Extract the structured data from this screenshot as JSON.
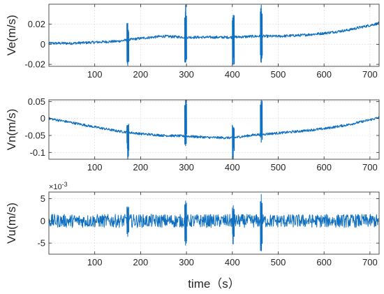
{
  "chart_data": [
    {
      "type": "line",
      "ylabel": "Ve(m/s)",
      "xlim": [
        0,
        720
      ],
      "ylim": [
        -0.022,
        0.04
      ],
      "xticks": [
        100,
        200,
        300,
        400,
        500,
        600,
        700
      ],
      "xtick_labels": [
        "100",
        "200",
        "300",
        "400",
        "500",
        "600",
        "700"
      ],
      "yticks": [
        0.02,
        0,
        -0.02
      ],
      "ytick_labels": [
        "0.02",
        "0",
        "-0.02"
      ],
      "grid": true,
      "series": [
        {
          "x": [
            0,
            50,
            100,
            150,
            200,
            250,
            300,
            350,
            400,
            450,
            500,
            550,
            600,
            650,
            700,
            720
          ],
          "values": [
            0.001,
            0.001,
            0.002,
            0.003,
            0.006,
            0.008,
            0.007,
            0.007,
            0.007,
            0.008,
            0.008,
            0.009,
            0.011,
            0.014,
            0.019,
            0.021
          ],
          "noise": 0.0013,
          "spikes": [
            {
              "x": 172,
              "hi": 0.021,
              "lo": -0.021
            },
            {
              "x": 298,
              "hi": 0.039,
              "lo": -0.018
            },
            {
              "x": 402,
              "hi": 0.029,
              "lo": -0.02
            },
            {
              "x": 463,
              "hi": 0.039,
              "lo": -0.018
            }
          ]
        }
      ]
    },
    {
      "type": "line",
      "ylabel": "Vn(m/s)",
      "xlim": [
        0,
        720
      ],
      "ylim": [
        -0.12,
        0.055
      ],
      "xticks": [
        100,
        200,
        300,
        400,
        500,
        600,
        700
      ],
      "xtick_labels": [
        "100",
        "200",
        "300",
        "400",
        "500",
        "600",
        "700"
      ],
      "yticks": [
        0.05,
        0,
        -0.05,
        -0.1
      ],
      "ytick_labels": [
        "0.05",
        "0",
        "-0.05",
        "-0.1"
      ],
      "grid": true,
      "series": [
        {
          "x": [
            0,
            50,
            100,
            150,
            200,
            250,
            300,
            350,
            400,
            450,
            500,
            550,
            600,
            650,
            700,
            720
          ],
          "values": [
            0.0,
            -0.012,
            -0.025,
            -0.037,
            -0.045,
            -0.05,
            -0.052,
            -0.056,
            -0.057,
            -0.048,
            -0.043,
            -0.037,
            -0.03,
            -0.019,
            -0.004,
            0.003
          ],
          "noise": 0.0035,
          "spikes": [
            {
              "x": 172,
              "hi": -0.03,
              "lo": -0.12
            },
            {
              "x": 298,
              "hi": 0.055,
              "lo": -0.08
            },
            {
              "x": 402,
              "hi": -0.035,
              "lo": -0.12
            },
            {
              "x": 463,
              "hi": 0.055,
              "lo": -0.07
            }
          ]
        }
      ]
    },
    {
      "type": "line",
      "ylabel": "Vu(m/s)",
      "exponent": "×10",
      "exponent_power": "-3",
      "xlabel": "time（s）",
      "xlim": [
        0,
        720
      ],
      "ylim": [
        -7.5,
        6.5
      ],
      "xticks": [
        100,
        200,
        300,
        400,
        500,
        600,
        700
      ],
      "xtick_labels": [
        "100",
        "200",
        "300",
        "400",
        "500",
        "600",
        "700"
      ],
      "yticks": [
        5,
        0,
        -5
      ],
      "ytick_labels": [
        "5",
        "0",
        "-5"
      ],
      "grid": true,
      "series": [
        {
          "x": [
            0,
            720
          ],
          "values": [
            0.0,
            0.0
          ],
          "noise": 1.5,
          "spikes": [
            {
              "x": 172,
              "hi": 3.2,
              "lo": -3.5
            },
            {
              "x": 298,
              "hi": 4.5,
              "lo": -5.5
            },
            {
              "x": 402,
              "hi": 3.5,
              "lo": -5.2
            },
            {
              "x": 463,
              "hi": 6.0,
              "lo": -6.8
            }
          ]
        }
      ]
    }
  ]
}
